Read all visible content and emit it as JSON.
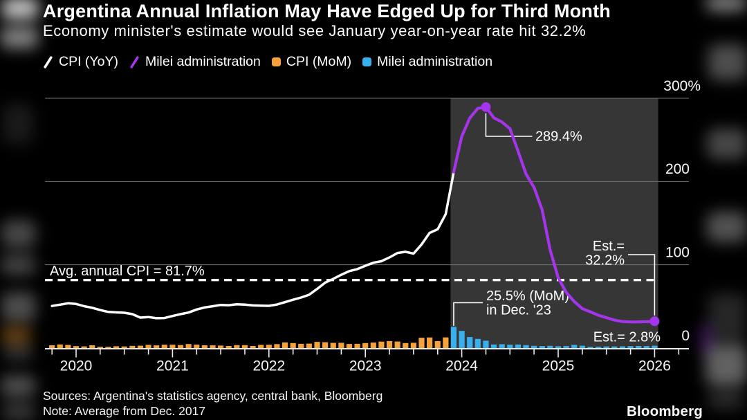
{
  "header": {
    "title": "Argentina Annual Inflation May Have Edged Up for Third Month",
    "subtitle": "Economy minister's estimate would see January year-on-year rate hit 32.2%"
  },
  "legend": {
    "items": [
      {
        "label": "CPI (YoY)",
        "swatch": "line",
        "color": "#ffffff"
      },
      {
        "label": "Milei administration",
        "swatch": "line",
        "color": "#a435ea"
      },
      {
        "label": "CPI (MoM)",
        "swatch": "square",
        "color": "#f7a139"
      },
      {
        "label": "Milei administration",
        "swatch": "square",
        "color": "#38b0ee"
      }
    ]
  },
  "footer": {
    "sources": "Sources: Argentina's statistics agency, central bank, Bloomberg",
    "note": "Note: Average from Dec. 2017",
    "brand": "Bloomberg"
  },
  "chart_data": {
    "type": "combo line + bar",
    "x_axis": {
      "years": [
        2020,
        2021,
        2022,
        2023,
        2024,
        2025,
        2026
      ],
      "minor_tick_interval_months": 3,
      "range": [
        "2019-10",
        "2026-01"
      ]
    },
    "y_axis": {
      "unit": "%",
      "range": [
        0,
        300
      ],
      "ticks": [
        {
          "value": 300,
          "label": "300%"
        },
        {
          "value": 200,
          "label": "200"
        },
        {
          "value": 100,
          "label": "100"
        },
        {
          "value": 0,
          "label": "0"
        }
      ]
    },
    "grid": {
      "color": "#757575",
      "baseline_color": "#ececec"
    },
    "shaded_region": {
      "label": "Milei administration",
      "from": "2023-12",
      "to": "2026-01",
      "color": "#363636"
    },
    "reference_line": {
      "label": "Avg. annual CPI = 81.7%",
      "value": 81.7,
      "style": "dashed",
      "color": "#ffffff"
    },
    "series": [
      {
        "name": "CPI (YoY)",
        "type": "line",
        "color": "#ffffff",
        "start": "2019-10",
        "join_next": true,
        "values": [
          50.5,
          52.1,
          53.8,
          52.9,
          50.3,
          48.4,
          45.6,
          43.4,
          42.8,
          42.4,
          40.7,
          36.6,
          37.2,
          35.8,
          36.1,
          38.5,
          40.7,
          42.6,
          46.3,
          48.8,
          50.2,
          51.8,
          51.4,
          52.5,
          52.1,
          51.2,
          50.9,
          50.7,
          52.3,
          55.1,
          58.0,
          60.7,
          64.0,
          71.0,
          78.5,
          83.0,
          88.0,
          92.4,
          94.8,
          98.8,
          102.5,
          104.3,
          108.8,
          114.2,
          115.6,
          113.4,
          124.4,
          138.3,
          142.7,
          160.9
        ]
      },
      {
        "name": "CPI (YoY) Milei administration",
        "type": "line",
        "color": "#a435ea",
        "start": "2023-12",
        "values": [
          211.4,
          254.2,
          276.2,
          287.9,
          289.4,
          276.4,
          271.5,
          263.4,
          236.7,
          209.0,
          193.0,
          166.0,
          117.8,
          84.5,
          66.9,
          55.9,
          47.3,
          43.5,
          39.4,
          36.6,
          33.6,
          31.8,
          31.3,
          31.4,
          31.7,
          32.2
        ],
        "markers": [
          {
            "month": "2024-04",
            "value": 289.4
          },
          {
            "month": "2026-01",
            "value": 32.2
          }
        ]
      },
      {
        "name": "CPI (MoM)",
        "type": "bar",
        "color": "#f7a139",
        "start": "2019-10",
        "values": [
          3.3,
          4.3,
          3.7,
          2.3,
          2.0,
          3.3,
          1.5,
          1.5,
          2.2,
          1.9,
          2.7,
          2.8,
          3.8,
          3.2,
          4.0,
          4.0,
          3.6,
          4.8,
          4.1,
          3.3,
          3.2,
          3.0,
          2.5,
          3.5,
          3.5,
          2.5,
          3.8,
          3.9,
          4.7,
          6.7,
          6.0,
          5.1,
          5.3,
          7.4,
          7.0,
          6.2,
          6.3,
          4.9,
          5.1,
          6.0,
          6.6,
          7.7,
          8.4,
          7.8,
          6.0,
          6.3,
          12.4,
          12.7,
          8.3,
          12.8
        ]
      },
      {
        "name": "CPI (MoM) Milei administration",
        "type": "bar",
        "color": "#38b0ee",
        "start": "2023-12",
        "values": [
          25.5,
          20.6,
          13.2,
          11.0,
          8.8,
          4.2,
          4.6,
          4.0,
          4.2,
          3.5,
          2.7,
          2.4,
          2.7,
          2.2,
          2.4,
          3.7,
          2.8,
          1.5,
          1.6,
          1.9,
          1.9,
          2.1,
          2.3,
          2.5,
          2.4,
          2.8
        ]
      }
    ],
    "annotations": [
      {
        "id": "peak",
        "text": "289.4%",
        "month": "2024-04",
        "value": 289.4
      },
      {
        "id": "mom_peak",
        "lines": [
          "25.5% (MoM)",
          "in Dec. '23"
        ],
        "month": "2023-12",
        "value": 25.5
      },
      {
        "id": "est_yoy",
        "lines": [
          "Est.=",
          "32.2%"
        ],
        "month": "2026-01",
        "value": 32.2
      },
      {
        "id": "est_mom",
        "text": "Est.= 2.8%",
        "month": "2026-01",
        "value": 2.8
      }
    ]
  }
}
